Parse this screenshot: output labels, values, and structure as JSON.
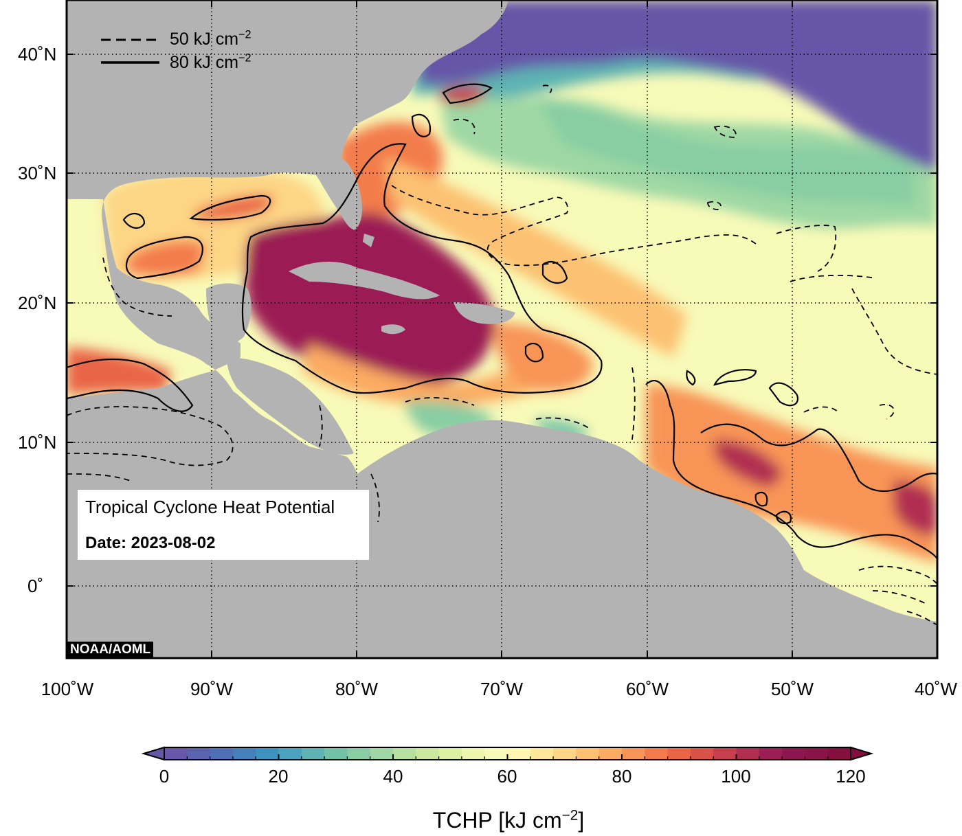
{
  "title": "Tropical Cyclone Heat Potential",
  "date_label": "Date: 2023-08-02",
  "credit": "NOAA/AOML",
  "legend": {
    "dashed_label": "50 kJ cm",
    "solid_label": "80 kJ cm",
    "unit_exponent": "−2",
    "dashed_value": 50,
    "solid_value": 80
  },
  "latitude_labels": [
    "40˚N",
    "30˚N",
    "20˚N",
    "10˚N",
    "0˚"
  ],
  "longitude_labels": [
    "100˚W",
    "90˚W",
    "80˚W",
    "70˚W",
    "60˚W",
    "50˚W",
    "40˚W"
  ],
  "colorbar": {
    "title": "TCHP [kJ cm",
    "title_exponent": "−2",
    "title_close": "]",
    "min": 0,
    "max": 120,
    "step": 4,
    "ticks": [
      "0",
      "20",
      "40",
      "60",
      "80",
      "100",
      "120"
    ],
    "colors": [
      "#6657a8",
      "#5a63ad",
      "#4f70b4",
      "#4481bb",
      "#3d93c0",
      "#4aa3bf",
      "#5db4b3",
      "#72c2a8",
      "#88cda3",
      "#9fd8a4",
      "#b5e09f",
      "#cae99e",
      "#dcf0a2",
      "#ecf6ad",
      "#f8fab8",
      "#fef7b2",
      "#fee89a",
      "#fdd685",
      "#fcc172",
      "#fbab62",
      "#f89456",
      "#f37b4b",
      "#e96546",
      "#da5147",
      "#c73e4c",
      "#b12e51",
      "#9b1f55",
      "#8e1650",
      "#8a1348",
      "#85103f"
    ]
  },
  "colors": {
    "land": "#b3b3b3",
    "deep_low": "#6657a8",
    "ocean_frame": "#000000"
  }
}
